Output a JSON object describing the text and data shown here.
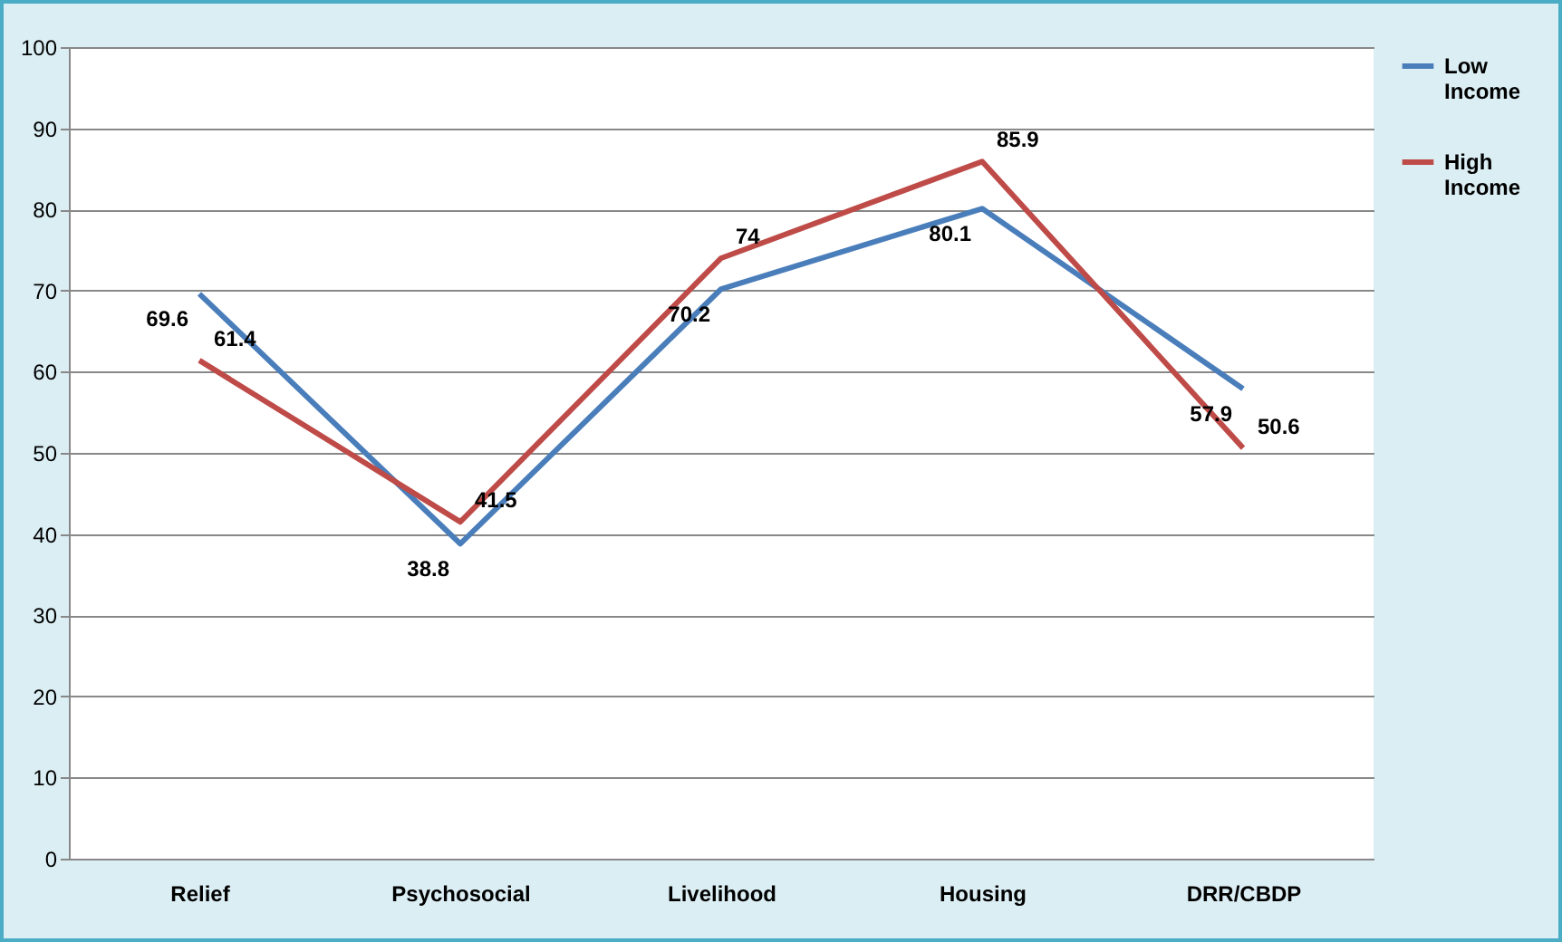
{
  "chart_data": {
    "type": "line",
    "categories": [
      "Relief",
      "Psychosocial",
      "Livelihood",
      "Housing",
      "DRR/CBDP"
    ],
    "series": [
      {
        "name": "Low Income",
        "color": "#4a7ebb",
        "values": [
          69.6,
          38.8,
          70.2,
          80.1,
          57.9
        ]
      },
      {
        "name": "High Income",
        "color": "#be4b48",
        "values": [
          61.4,
          41.5,
          74,
          85.9,
          50.6
        ]
      }
    ],
    "ylim": [
      0,
      100
    ],
    "yticks": [
      0,
      10,
      20,
      30,
      40,
      50,
      60,
      70,
      80,
      90,
      100
    ],
    "grid": "y",
    "legend": "right",
    "data_labels": true,
    "marker": "none",
    "line_style": "solid"
  }
}
